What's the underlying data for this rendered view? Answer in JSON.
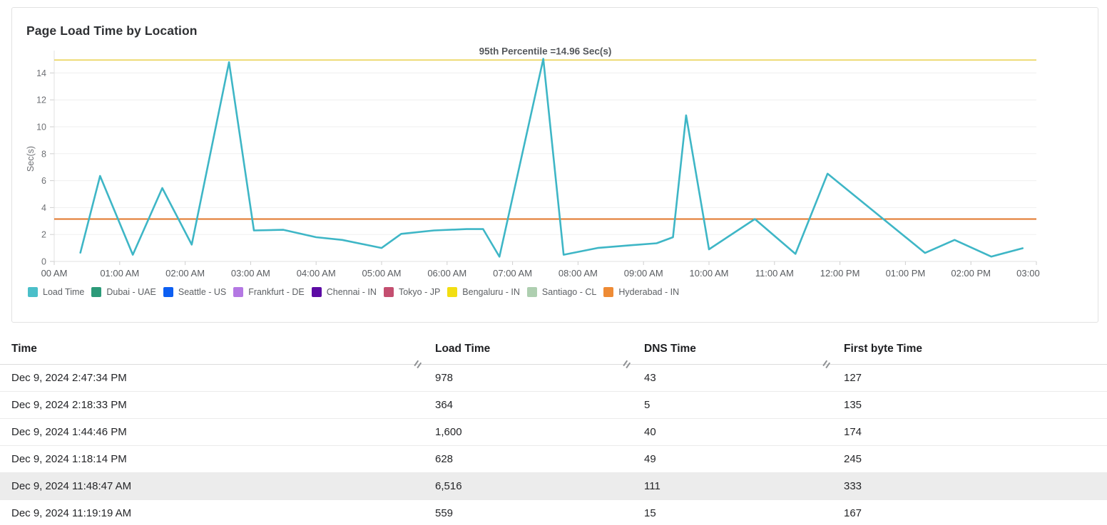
{
  "card": {
    "title": "Page Load Time by Location"
  },
  "chart_data": {
    "type": "line",
    "title": "Page Load Time by Location",
    "xlabel": "",
    "ylabel": "Sec(s)",
    "ylim": [
      0,
      15.6
    ],
    "xlim_hours": [
      0,
      15
    ],
    "grid": true,
    "legend_position": "bottom",
    "yticks": [
      0,
      2,
      4,
      6,
      8,
      10,
      12,
      14
    ],
    "xticks": [
      {
        "hour": 0,
        "label": "00 AM"
      },
      {
        "hour": 1,
        "label": "01:00 AM"
      },
      {
        "hour": 2,
        "label": "02:00 AM"
      },
      {
        "hour": 3,
        "label": "03:00 AM"
      },
      {
        "hour": 4,
        "label": "04:00 AM"
      },
      {
        "hour": 5,
        "label": "05:00 AM"
      },
      {
        "hour": 6,
        "label": "06:00 AM"
      },
      {
        "hour": 7,
        "label": "07:00 AM"
      },
      {
        "hour": 8,
        "label": "08:00 AM"
      },
      {
        "hour": 9,
        "label": "09:00 AM"
      },
      {
        "hour": 10,
        "label": "10:00 AM"
      },
      {
        "hour": 11,
        "label": "11:00 AM"
      },
      {
        "hour": 12,
        "label": "12:00 PM"
      },
      {
        "hour": 13,
        "label": "01:00 PM"
      },
      {
        "hour": 14,
        "label": "02:00 PM"
      },
      {
        "hour": 15,
        "label": "03:00 PM"
      }
    ],
    "series": [
      {
        "name": "Load Time",
        "color": "#3eb6c6",
        "unit": "Sec(s)",
        "points": [
          [
            0.4,
            0.65
          ],
          [
            0.7,
            6.35
          ],
          [
            1.2,
            0.5
          ],
          [
            1.65,
            5.45
          ],
          [
            2.1,
            1.25
          ],
          [
            2.67,
            14.8
          ],
          [
            3.05,
            2.3
          ],
          [
            3.5,
            2.35
          ],
          [
            4.0,
            1.8
          ],
          [
            4.4,
            1.6
          ],
          [
            5.0,
            1.0
          ],
          [
            5.3,
            2.05
          ],
          [
            5.8,
            2.3
          ],
          [
            6.3,
            2.4
          ],
          [
            6.55,
            2.4
          ],
          [
            6.8,
            0.35
          ],
          [
            7.47,
            15.05
          ],
          [
            7.78,
            0.5
          ],
          [
            8.3,
            1.0
          ],
          [
            8.8,
            1.2
          ],
          [
            9.2,
            1.35
          ],
          [
            9.45,
            1.8
          ],
          [
            9.65,
            10.85
          ],
          [
            10.0,
            0.9
          ],
          [
            10.7,
            3.15
          ],
          [
            11.32,
            0.56
          ],
          [
            11.81,
            6.52
          ],
          [
            13.3,
            0.63
          ],
          [
            13.75,
            1.6
          ],
          [
            14.31,
            0.36
          ],
          [
            14.79,
            0.98
          ]
        ]
      }
    ],
    "reference_lines": [
      {
        "label": "95th Percentile =14.96 Sec(s)",
        "value": 14.96,
        "color": "#e9d04c"
      },
      {
        "label": "",
        "value": 3.15,
        "color": "#e0762a"
      }
    ],
    "legend": [
      {
        "label": "Load Time",
        "color": "#4bbfc9"
      },
      {
        "label": "Dubai - UAE",
        "color": "#2c9a79"
      },
      {
        "label": "Seattle - US",
        "color": "#0d5ff2"
      },
      {
        "label": "Frankfurt - DE",
        "color": "#b478e3"
      },
      {
        "label": "Chennai - IN",
        "color": "#5c0ba4"
      },
      {
        "label": "Tokyo - JP",
        "color": "#c44f70"
      },
      {
        "label": "Bengaluru - IN",
        "color": "#f2de12"
      },
      {
        "label": "Santiago - CL",
        "color": "#aecfb0"
      },
      {
        "label": "Hyderabad - IN",
        "color": "#ee8b35"
      }
    ]
  },
  "table": {
    "columns": [
      "Time",
      "Load Time",
      "DNS Time",
      "First byte Time"
    ],
    "highlighted_row_index": 4,
    "rows": [
      [
        "Dec 9, 2024 2:47:34 PM",
        "978",
        "43",
        "127"
      ],
      [
        "Dec 9, 2024 2:18:33 PM",
        "364",
        "5",
        "135"
      ],
      [
        "Dec 9, 2024 1:44:46 PM",
        "1,600",
        "40",
        "174"
      ],
      [
        "Dec 9, 2024 1:18:14 PM",
        "628",
        "49",
        "245"
      ],
      [
        "Dec 9, 2024 11:48:47 AM",
        "6,516",
        "111",
        "333"
      ],
      [
        "Dec 9, 2024 11:19:19 AM",
        "559",
        "15",
        "167"
      ]
    ]
  }
}
